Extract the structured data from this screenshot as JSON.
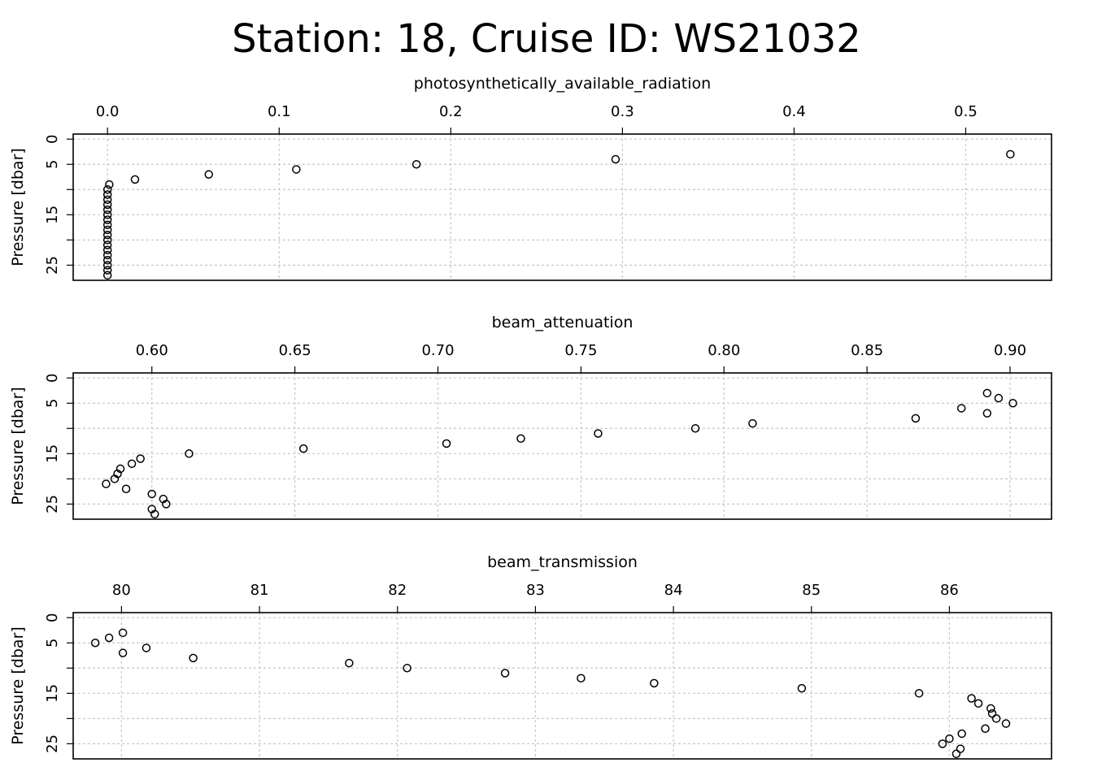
{
  "title": "Station: 18, Cruise ID: WS21032",
  "chart_data": [
    {
      "type": "scatter",
      "xlabel": "photosynthetically_available_radiation",
      "ylabel": "Pressure [dbar]",
      "xlim": [
        -0.02,
        0.55
      ],
      "ylim": [
        28,
        -1
      ],
      "xticks": [
        0.0,
        0.1,
        0.2,
        0.3,
        0.4,
        0.5
      ],
      "xtick_labels": [
        "0.0",
        "0.1",
        "0.2",
        "0.3",
        "0.4",
        "0.5"
      ],
      "yticks": [
        0,
        5,
        10,
        15,
        20,
        25
      ],
      "ytick_labels": [
        "0",
        "5",
        "",
        "15",
        "",
        "25"
      ],
      "grid": true,
      "points": [
        {
          "x": 0.526,
          "y": 3
        },
        {
          "x": 0.296,
          "y": 4
        },
        {
          "x": 0.18,
          "y": 5
        },
        {
          "x": 0.11,
          "y": 6
        },
        {
          "x": 0.059,
          "y": 7
        },
        {
          "x": 0.016,
          "y": 8
        },
        {
          "x": 0.001,
          "y": 9
        },
        {
          "x": 0.0,
          "y": 10
        },
        {
          "x": 0.0,
          "y": 11
        },
        {
          "x": 0.0,
          "y": 12
        },
        {
          "x": 0.0,
          "y": 13
        },
        {
          "x": 0.0,
          "y": 14
        },
        {
          "x": 0.0,
          "y": 15
        },
        {
          "x": 0.0,
          "y": 16
        },
        {
          "x": 0.0,
          "y": 17
        },
        {
          "x": 0.0,
          "y": 18
        },
        {
          "x": 0.0,
          "y": 19
        },
        {
          "x": 0.0,
          "y": 20
        },
        {
          "x": 0.0,
          "y": 21
        },
        {
          "x": 0.0,
          "y": 22
        },
        {
          "x": 0.0,
          "y": 23
        },
        {
          "x": 0.0,
          "y": 24
        },
        {
          "x": 0.0,
          "y": 25
        },
        {
          "x": 0.0,
          "y": 26
        },
        {
          "x": 0.0,
          "y": 27
        }
      ]
    },
    {
      "type": "scatter",
      "xlabel": "beam_attenuation",
      "ylabel": "Pressure [dbar]",
      "xlim": [
        0.5725,
        0.9145
      ],
      "ylim": [
        28,
        -1
      ],
      "xticks": [
        0.6,
        0.65,
        0.7,
        0.75,
        0.8,
        0.85,
        0.9
      ],
      "xtick_labels": [
        "0.60",
        "0.65",
        "0.70",
        "0.75",
        "0.80",
        "0.85",
        "0.90"
      ],
      "yticks": [
        0,
        5,
        10,
        15,
        20,
        25
      ],
      "ytick_labels": [
        "0",
        "5",
        "",
        "15",
        "",
        "25"
      ],
      "grid": true,
      "points": [
        {
          "x": 0.892,
          "y": 3
        },
        {
          "x": 0.896,
          "y": 4
        },
        {
          "x": 0.901,
          "y": 5
        },
        {
          "x": 0.883,
          "y": 6
        },
        {
          "x": 0.892,
          "y": 7
        },
        {
          "x": 0.867,
          "y": 8
        },
        {
          "x": 0.81,
          "y": 9
        },
        {
          "x": 0.79,
          "y": 10
        },
        {
          "x": 0.756,
          "y": 11
        },
        {
          "x": 0.729,
          "y": 12
        },
        {
          "x": 0.703,
          "y": 13
        },
        {
          "x": 0.653,
          "y": 14
        },
        {
          "x": 0.613,
          "y": 15
        },
        {
          "x": 0.596,
          "y": 16
        },
        {
          "x": 0.593,
          "y": 17
        },
        {
          "x": 0.589,
          "y": 18
        },
        {
          "x": 0.588,
          "y": 19
        },
        {
          "x": 0.587,
          "y": 20
        },
        {
          "x": 0.584,
          "y": 21
        },
        {
          "x": 0.591,
          "y": 22
        },
        {
          "x": 0.6,
          "y": 23
        },
        {
          "x": 0.604,
          "y": 24
        },
        {
          "x": 0.605,
          "y": 25
        },
        {
          "x": 0.6,
          "y": 26
        },
        {
          "x": 0.601,
          "y": 27
        }
      ]
    },
    {
      "type": "scatter",
      "xlabel": "beam_transmission",
      "ylabel": "Pressure [dbar]",
      "xlim": [
        79.65,
        86.74
      ],
      "ylim": [
        28,
        -1
      ],
      "xticks": [
        80,
        81,
        82,
        83,
        84,
        85,
        86
      ],
      "xtick_labels": [
        "80",
        "81",
        "82",
        "83",
        "84",
        "85",
        "86"
      ],
      "yticks": [
        0,
        5,
        10,
        15,
        20,
        25
      ],
      "ytick_labels": [
        "0",
        "5",
        "",
        "15",
        "",
        "25"
      ],
      "grid": true,
      "points": [
        {
          "x": 80.01,
          "y": 3
        },
        {
          "x": 79.91,
          "y": 4
        },
        {
          "x": 79.81,
          "y": 5
        },
        {
          "x": 80.18,
          "y": 6
        },
        {
          "x": 80.01,
          "y": 7
        },
        {
          "x": 80.52,
          "y": 8
        },
        {
          "x": 81.65,
          "y": 9
        },
        {
          "x": 82.07,
          "y": 10
        },
        {
          "x": 82.78,
          "y": 11
        },
        {
          "x": 83.33,
          "y": 12
        },
        {
          "x": 83.86,
          "y": 13
        },
        {
          "x": 84.93,
          "y": 14
        },
        {
          "x": 85.78,
          "y": 15
        },
        {
          "x": 86.16,
          "y": 16
        },
        {
          "x": 86.21,
          "y": 17
        },
        {
          "x": 86.3,
          "y": 18
        },
        {
          "x": 86.31,
          "y": 19
        },
        {
          "x": 86.34,
          "y": 20
        },
        {
          "x": 86.41,
          "y": 21
        },
        {
          "x": 86.26,
          "y": 22
        },
        {
          "x": 86.09,
          "y": 23
        },
        {
          "x": 86.0,
          "y": 24
        },
        {
          "x": 85.95,
          "y": 25
        },
        {
          "x": 86.08,
          "y": 26
        },
        {
          "x": 86.05,
          "y": 27
        }
      ]
    }
  ]
}
